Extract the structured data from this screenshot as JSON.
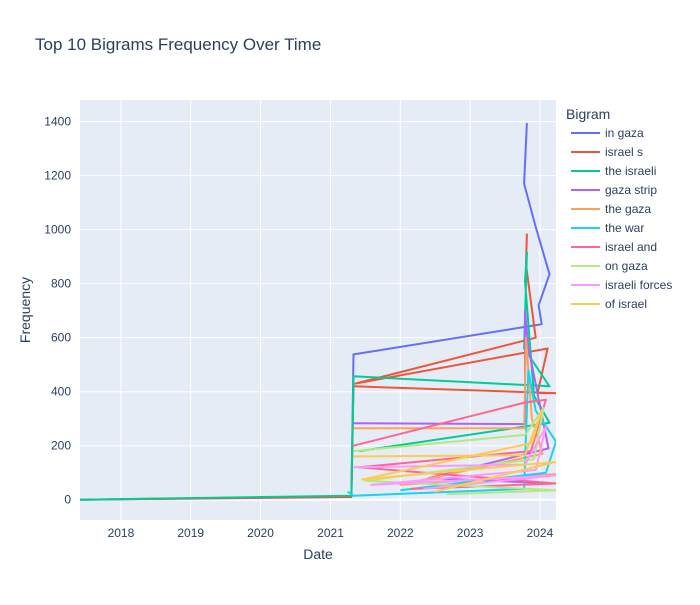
{
  "chart_data": {
    "type": "line",
    "title": "Top 10 Bigrams Frequency Over Time",
    "xlabel": "Date",
    "ylabel": "Frequency",
    "x_range": [
      "2017-06-01",
      "2024-03-25"
    ],
    "y_range": [
      -75,
      1480
    ],
    "x_ticks": [
      {
        "date": "2018-01-01",
        "label": "2018"
      },
      {
        "date": "2019-01-01",
        "label": "2019"
      },
      {
        "date": "2020-01-01",
        "label": "2020"
      },
      {
        "date": "2021-01-01",
        "label": "2021"
      },
      {
        "date": "2022-01-01",
        "label": "2022"
      },
      {
        "date": "2023-01-01",
        "label": "2023"
      },
      {
        "date": "2024-01-01",
        "label": "2024"
      }
    ],
    "y_ticks": [
      0,
      200,
      400,
      600,
      800,
      1000,
      1200,
      1400
    ],
    "grid": true,
    "legend_title": "Bigram",
    "legend_position": "right",
    "colors": {
      "plot_background": "#E5ECF6",
      "grid": "#ffffff",
      "text": "#2a3f5f"
    },
    "series": [
      {
        "name": "in gaza",
        "color": "#636EFA",
        "points": [
          [
            "2017-06-01",
            0
          ],
          [
            "2021-04-20",
            12
          ],
          [
            "2021-05-01",
            538
          ],
          [
            "2023-10-15",
            640
          ],
          [
            "2024-01-10",
            650
          ],
          [
            "2023-12-25",
            720
          ],
          [
            "2024-02-20",
            835
          ],
          [
            "2023-12-10",
            1010
          ],
          [
            "2023-10-10",
            1170
          ],
          [
            "2023-10-25",
            1395
          ]
        ]
      },
      {
        "name": "israel s",
        "color": "#EF553B",
        "points": [
          [
            "2017-06-01",
            0
          ],
          [
            "2021-04-20",
            10
          ],
          [
            "2021-05-01",
            420
          ],
          [
            "2024-03-25",
            395
          ],
          [
            "2023-12-20",
            395
          ],
          [
            "2024-02-10",
            560
          ],
          [
            "2021-05-10",
            430
          ],
          [
            "2023-12-10",
            600
          ],
          [
            "2023-10-20",
            870
          ],
          [
            "2023-10-25",
            985
          ]
        ]
      },
      {
        "name": "the israeli",
        "color": "#00CC96",
        "points": [
          [
            "2017-06-01",
            0
          ],
          [
            "2021-04-20",
            15
          ],
          [
            "2021-05-01",
            457
          ],
          [
            "2024-02-20",
            420
          ],
          [
            "2023-10-10",
            560
          ],
          [
            "2023-10-25",
            915
          ],
          [
            "2023-10-15",
            810
          ],
          [
            "2023-12-01",
            385
          ],
          [
            "2024-02-20",
            285
          ],
          [
            "2021-06-01",
            180
          ]
        ]
      },
      {
        "name": "gaza strip",
        "color": "#AB63FA",
        "points": [
          [
            "2021-05-01",
            283
          ],
          [
            "2023-10-15",
            280
          ],
          [
            "2023-10-15",
            700
          ],
          [
            "2023-11-01",
            565
          ],
          [
            "2024-02-15",
            190
          ],
          [
            "2022-06-01",
            80
          ],
          [
            "2024-03-25",
            60
          ]
        ]
      },
      {
        "name": "the gaza",
        "color": "#FFA15A",
        "points": [
          [
            "2021-05-01",
            265
          ],
          [
            "2023-10-10",
            265
          ],
          [
            "2023-10-20",
            600
          ],
          [
            "2023-11-20",
            300
          ],
          [
            "2024-01-15",
            170
          ],
          [
            "2022-01-01",
            55
          ],
          [
            "2024-03-25",
            95
          ]
        ]
      },
      {
        "name": "the war",
        "color": "#19D3F3",
        "points": [
          [
            "2021-04-01",
            30
          ],
          [
            "2021-05-01",
            15
          ],
          [
            "2023-10-10",
            40
          ],
          [
            "2023-11-01",
            480
          ],
          [
            "2023-12-10",
            330
          ],
          [
            "2024-03-25",
            215
          ],
          [
            "2024-02-01",
            100
          ],
          [
            "2022-01-01",
            35
          ]
        ]
      },
      {
        "name": "israel and",
        "color": "#FF6692",
        "points": [
          [
            "2021-05-01",
            200
          ],
          [
            "2023-10-15",
            360
          ],
          [
            "2024-02-01",
            370
          ],
          [
            "2023-11-15",
            180
          ],
          [
            "2021-06-01",
            120
          ],
          [
            "2024-03-25",
            60
          ],
          [
            "2022-03-01",
            40
          ]
        ]
      },
      {
        "name": "on gaza",
        "color": "#B6E880",
        "points": [
          [
            "2021-05-01",
            180
          ],
          [
            "2023-10-15",
            240
          ],
          [
            "2024-01-20",
            340
          ],
          [
            "2023-12-01",
            150
          ],
          [
            "2021-07-01",
            70
          ],
          [
            "2024-03-25",
            35
          ],
          [
            "2022-09-01",
            20
          ]
        ]
      },
      {
        "name": "israeli forces",
        "color": "#FF97FF",
        "points": [
          [
            "2021-05-01",
            120
          ],
          [
            "2023-10-15",
            130
          ],
          [
            "2024-02-01",
            270
          ],
          [
            "2023-12-10",
            110
          ],
          [
            "2021-08-01",
            55
          ],
          [
            "2024-03-25",
            90
          ],
          [
            "2022-05-01",
            40
          ]
        ]
      },
      {
        "name": "of israel",
        "color": "#FECB52",
        "points": [
          [
            "2021-05-01",
            160
          ],
          [
            "2023-10-15",
            165
          ],
          [
            "2024-01-10",
            330
          ],
          [
            "2023-11-20",
            210
          ],
          [
            "2021-06-15",
            75
          ],
          [
            "2024-03-25",
            140
          ],
          [
            "2022-07-01",
            30
          ]
        ]
      }
    ]
  }
}
